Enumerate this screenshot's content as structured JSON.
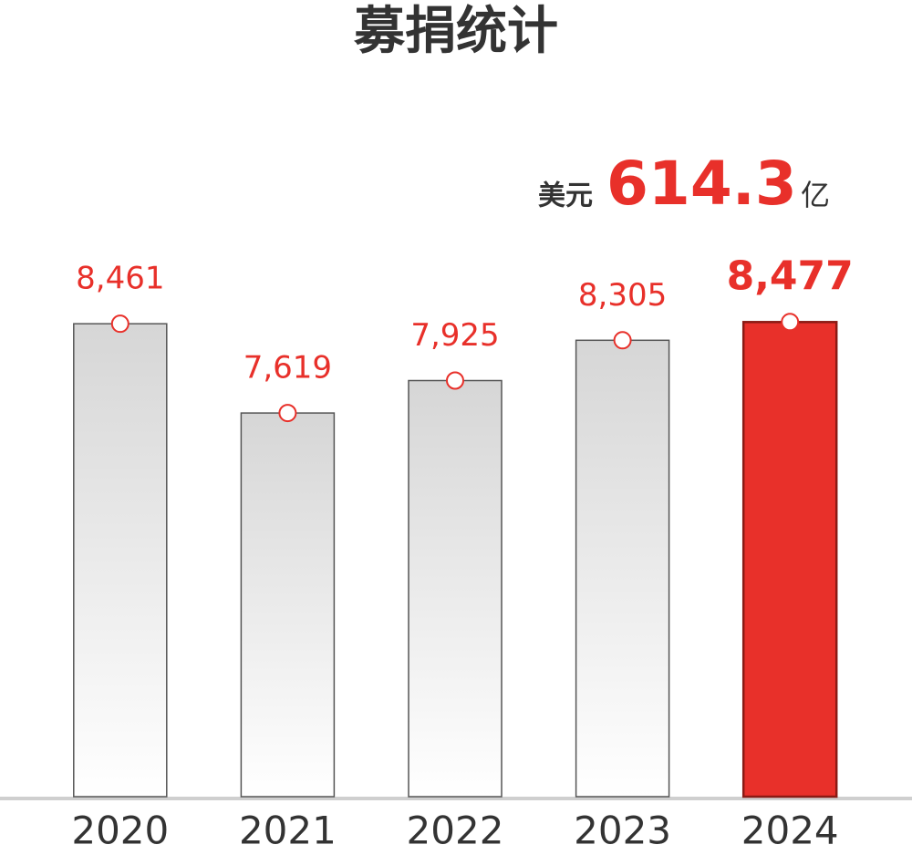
{
  "chart_data": {
    "type": "bar",
    "title": "募捐统计",
    "annotation": {
      "prefix": "美元",
      "value": "614.3",
      "suffix": "亿"
    },
    "categories": [
      "2020",
      "2021",
      "2022",
      "2023",
      "2024"
    ],
    "values": [
      8461,
      7619,
      7925,
      8305,
      8477
    ],
    "value_labels": [
      "8,461",
      "7,619",
      "7,925",
      "8,305",
      "8,477"
    ],
    "colors": [
      "#d6d6d6",
      "#d6d6d6",
      "#d6d6d6",
      "#d6d6d6",
      "#e8302a"
    ],
    "label_color": "#e8302a",
    "highlight_index": 4,
    "ylim": [
      4000,
      8600
    ]
  }
}
